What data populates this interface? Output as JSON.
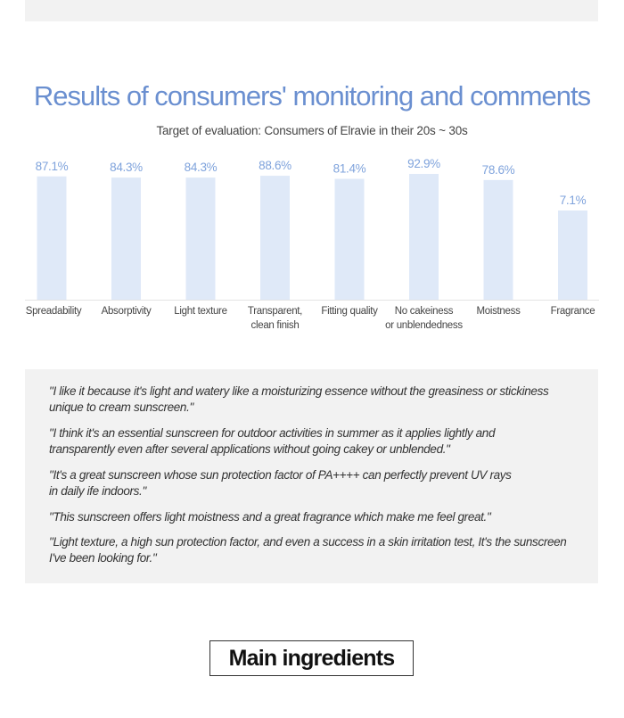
{
  "header": {
    "title": "Results of consumers' monitoring and comments",
    "subtitle": "Target of evaluation: Consumers of Elravie in their 20s ~ 30s"
  },
  "chart_data": {
    "type": "bar",
    "title": "Results of consumers' monitoring and comments",
    "subtitle": "Target of evaluation: Consumers of Elravie in their 20s ~ 30s",
    "categories": [
      [
        "Spreadability"
      ],
      [
        "Absorptivity"
      ],
      [
        "Light texture"
      ],
      [
        "Transparent,",
        "clean finish"
      ],
      [
        "Fitting quality"
      ],
      [
        "No cakeiness",
        "or unblendedness"
      ],
      [
        "Moistness"
      ],
      [
        "Fragrance"
      ]
    ],
    "values": [
      87.1,
      84.3,
      84.3,
      88.6,
      81.4,
      92.9,
      78.6,
      7.1
    ],
    "value_labels": [
      "87.1%",
      "84.3%",
      "84.3%",
      "88.6%",
      "81.4%",
      "92.9%",
      "78.6%",
      "7.1%"
    ],
    "ylim": [
      0,
      100
    ],
    "grid": false,
    "bar_color": "#dfe9f8",
    "label_color": "#7fa3dc"
  },
  "comments": [
    "\"I like it because it's light and watery like a moisturizing essence without the greasiness or stickiness\nunique to cream sunscreen.\"",
    "\"I think it's an essential sunscreen for outdoor activities in summer as it applies lightly and\ntransparently even after several applications without going cakey or unblended.\"",
    "\"It's a great sunscreen whose sun protection factor of PA++++ can perfectly prevent UV rays\nin daily  ife indoors.\"",
    "\"This sunscreen offers light moistness and a great fragrance which make me feel great.\"",
    "\"Light texture, a high sun protection factor, and even a success in a skin irritation test, It's the sunscreen\nI've been looking for.\""
  ],
  "main_ingredients_label": "Main ingredients"
}
